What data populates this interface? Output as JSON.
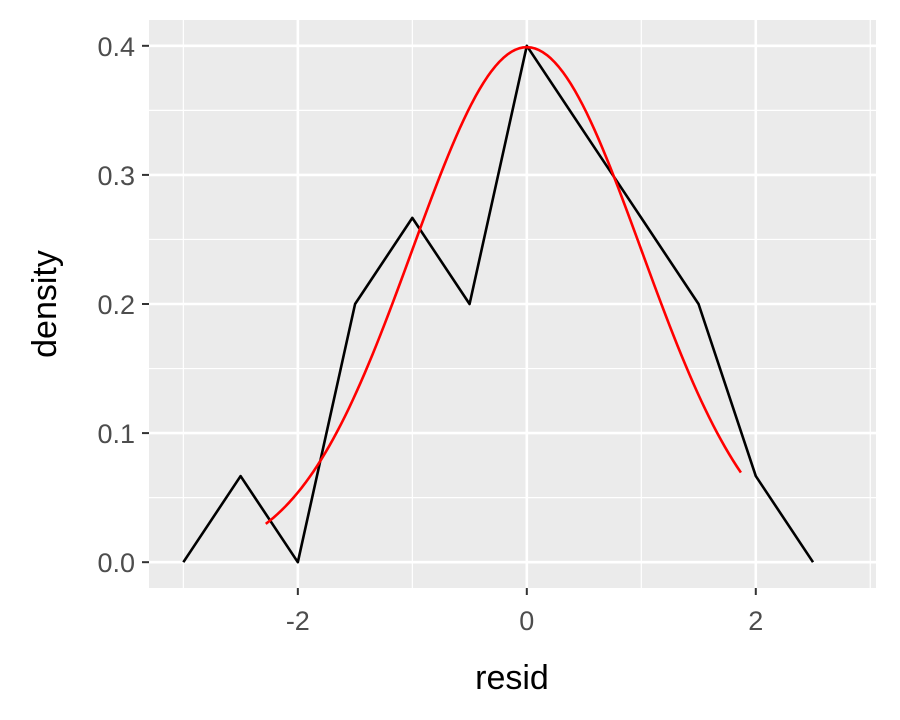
{
  "chart_data": {
    "type": "line",
    "xlabel": "resid",
    "ylabel": "density",
    "xlim": [
      -3.3,
      3.05
    ],
    "ylim": [
      -0.02,
      0.42
    ],
    "x_ticks": [
      -2,
      0,
      2
    ],
    "x_tick_labels": [
      "-2",
      "0",
      "2"
    ],
    "y_ticks": [
      0.0,
      0.1,
      0.2,
      0.3,
      0.4
    ],
    "y_tick_labels": [
      "0.0",
      "0.1",
      "0.2",
      "0.3",
      "0.4"
    ],
    "grid": true,
    "background": "#ebebeb",
    "series": [
      {
        "color": "#000000",
        "x": [
          -3.0,
          -2.5,
          -2.0,
          -1.5,
          -1.0,
          -0.5,
          0.0,
          0.5,
          1.0,
          1.5,
          2.0,
          2.5
        ],
        "y": [
          0.0,
          0.0667,
          0.0,
          0.2,
          0.2667,
          0.2,
          0.4,
          0.3333,
          0.2667,
          0.2,
          0.0667,
          0.0
        ]
      },
      {
        "color": "#ff0000",
        "curve": "normal-density",
        "mean": 0.0,
        "sd": 1.0,
        "x_range": [
          -2.28,
          1.87
        ]
      }
    ]
  }
}
